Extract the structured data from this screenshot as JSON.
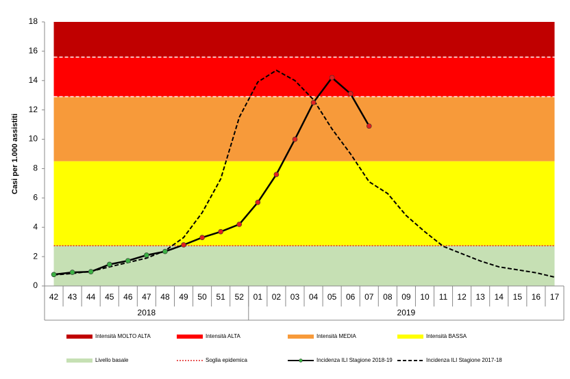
{
  "chart_data": {
    "type": "line",
    "y_label": "Casi per 1.000 assistiti",
    "categories": [
      "42",
      "43",
      "44",
      "45",
      "46",
      "47",
      "48",
      "49",
      "50",
      "51",
      "52",
      "01",
      "02",
      "03",
      "04",
      "05",
      "06",
      "07",
      "08",
      "09",
      "10",
      "11",
      "12",
      "13",
      "14",
      "15",
      "16",
      "17"
    ],
    "groups": [
      "2018",
      "2019"
    ],
    "ylim": [
      0,
      18
    ],
    "yticks": [
      0,
      2,
      4,
      6,
      8,
      10,
      12,
      14,
      16,
      18
    ],
    "bands": [
      {
        "name": "Intensità MOLTO ALTA",
        "color": "#c00000",
        "from": 15.6,
        "to": 18,
        "border": "#ffffff"
      },
      {
        "name": "Intensità ALTA",
        "color": "#ff0000",
        "from": 12.9,
        "to": 15.6,
        "border": "#ffffff"
      },
      {
        "name": "Intensità MEDIA",
        "color": "#f79a3a",
        "from": 8.5,
        "to": 12.9
      },
      {
        "name": "Intensità BASSA",
        "color": "#ffff00",
        "from": 2.74,
        "to": 8.5
      },
      {
        "name": "Livello basale",
        "color": "#c6e0b4",
        "from": 0,
        "to": 2.74
      }
    ],
    "threshold": {
      "name": "Soglia epidemica",
      "value": 2.74,
      "color": "#e02020"
    },
    "series": [
      {
        "name": "Incidenza ILI Stagione 2018-19",
        "color": "#000000",
        "dashed": false,
        "markers": true,
        "marker_color_below": "#3cb043",
        "marker_color_above": "#e02020",
        "values": [
          0.78,
          0.93,
          0.97,
          1.47,
          1.72,
          2.1,
          2.35,
          2.8,
          3.3,
          3.7,
          4.2,
          5.7,
          7.6,
          10.0,
          12.5,
          14.2,
          13.1,
          10.9,
          null,
          null,
          null,
          null,
          null,
          null,
          null,
          null,
          null,
          null
        ]
      },
      {
        "name": "Incidenza ILI Stagione 2017-18",
        "color": "#000000",
        "dashed": true,
        "markers": false,
        "values": [
          0.75,
          0.85,
          1.0,
          1.3,
          1.6,
          1.9,
          2.4,
          3.3,
          5.0,
          7.3,
          11.5,
          13.9,
          14.7,
          14.0,
          12.7,
          10.7,
          9.0,
          7.1,
          6.3,
          4.8,
          3.7,
          2.7,
          2.2,
          1.7,
          1.3,
          1.1,
          0.9,
          0.6
        ]
      }
    ]
  }
}
